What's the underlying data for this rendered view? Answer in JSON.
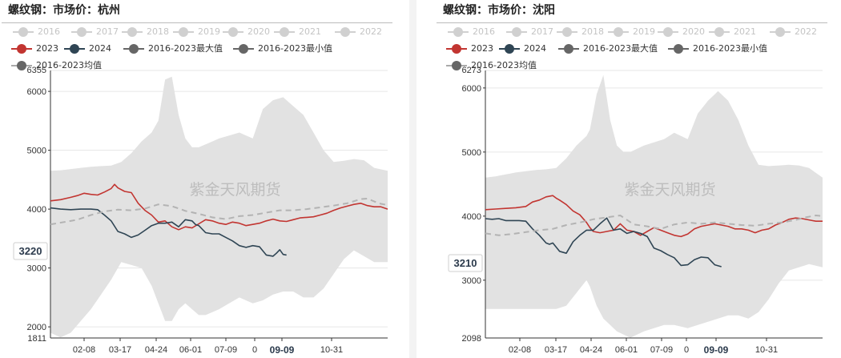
{
  "chart_data": [
    {
      "type": "line",
      "title": "螺纹钢：市场价：杭州",
      "watermark": "紫金天风期货",
      "x_ticks": [
        "02-08",
        "03-17",
        "04-24",
        "06-01",
        "07-09",
        "0",
        "09-09",
        "10-31"
      ],
      "highlight_tick": "09-09",
      "y_ticks": [
        2000,
        3000,
        4000,
        5000,
        6000
      ],
      "y_max_label": "6355",
      "y_min_label": "1811",
      "ylim": [
        1811,
        6355
      ],
      "last_value_label": "3220",
      "legend": [
        {
          "name": "2016",
          "active": false
        },
        {
          "name": "2017",
          "active": false
        },
        {
          "name": "2018",
          "active": false
        },
        {
          "name": "2019",
          "active": false
        },
        {
          "name": "2020",
          "active": false
        },
        {
          "name": "2021",
          "active": false
        },
        {
          "name": "2022",
          "active": false
        },
        {
          "name": "2023",
          "active": true,
          "color": "#c23531"
        },
        {
          "name": "2024",
          "active": true,
          "color": "#2f4554"
        },
        {
          "name": "2016-2023最大值",
          "active": true,
          "color": "#666666"
        },
        {
          "name": "2016-2023最小值",
          "active": true,
          "color": "#666666"
        },
        {
          "name": "2016-2023均值",
          "active": true,
          "color": "#666666"
        }
      ],
      "band": {
        "name": "2016-2023 range",
        "x": [
          0,
          3,
          6,
          9,
          12,
          15,
          18,
          21,
          24,
          27,
          30,
          32,
          34,
          36,
          38,
          40,
          42,
          44,
          46,
          48,
          50,
          53,
          56,
          60,
          63,
          66,
          69,
          72,
          75,
          78,
          81,
          84,
          87,
          90,
          93,
          96,
          100
        ],
        "max": [
          4650,
          4660,
          4680,
          4700,
          4720,
          4730,
          4740,
          4800,
          4950,
          5150,
          5300,
          5500,
          6200,
          6250,
          5600,
          5200,
          5050,
          5050,
          5100,
          5150,
          5200,
          5250,
          5300,
          5200,
          5700,
          5850,
          5900,
          5750,
          5600,
          5300,
          5000,
          4800,
          4820,
          4850,
          4830,
          4700,
          4650
        ],
        "min": [
          1900,
          1820,
          1900,
          2100,
          2300,
          2550,
          2800,
          3100,
          3050,
          3000,
          2700,
          2400,
          2100,
          2100,
          2300,
          2400,
          2300,
          2200,
          2200,
          2250,
          2300,
          2400,
          2500,
          2400,
          2450,
          2550,
          2600,
          2600,
          2500,
          2500,
          2650,
          2900,
          3150,
          3300,
          3200,
          3100,
          3100
        ]
      },
      "series": [
        {
          "name": "2023",
          "color": "#c23531",
          "dash": false,
          "x": [
            0,
            3,
            6,
            8,
            10,
            12,
            14,
            16,
            18,
            19,
            20,
            22,
            24,
            26,
            28,
            30,
            32,
            34,
            36,
            38,
            40,
            42,
            44,
            46,
            48,
            50,
            52,
            54,
            56,
            58,
            60,
            62,
            64,
            66,
            68,
            70,
            72,
            74,
            76,
            78,
            80,
            82,
            84,
            86,
            88,
            90,
            92,
            94,
            96,
            98,
            100
          ],
          "values": [
            4140,
            4160,
            4200,
            4230,
            4270,
            4250,
            4240,
            4290,
            4350,
            4420,
            4360,
            4300,
            4280,
            4100,
            3980,
            3900,
            3780,
            3800,
            3700,
            3650,
            3700,
            3680,
            3750,
            3820,
            3800,
            3760,
            3740,
            3780,
            3760,
            3720,
            3740,
            3760,
            3800,
            3830,
            3800,
            3790,
            3820,
            3850,
            3860,
            3870,
            3900,
            3930,
            3980,
            4020,
            4050,
            4080,
            4100,
            4060,
            4040,
            4040,
            4000
          ]
        },
        {
          "name": "2024",
          "color": "#2f4554",
          "dash": false,
          "x": [
            0,
            3,
            6,
            9,
            12,
            14,
            16,
            18,
            20,
            21,
            22,
            24,
            26,
            28,
            30,
            32,
            34,
            36,
            38,
            40,
            42,
            43,
            44,
            46,
            48,
            50,
            52,
            54,
            56,
            58,
            60,
            62,
            64,
            66,
            67,
            68,
            69,
            70
          ],
          "values": [
            4020,
            4000,
            3990,
            4000,
            4000,
            3990,
            3900,
            3800,
            3620,
            3600,
            3580,
            3520,
            3560,
            3640,
            3720,
            3760,
            3760,
            3780,
            3700,
            3820,
            3800,
            3740,
            3720,
            3600,
            3580,
            3580,
            3520,
            3460,
            3380,
            3350,
            3380,
            3360,
            3220,
            3200,
            3250,
            3310,
            3230,
            3220
          ]
        },
        {
          "name": "2016-2023均值",
          "color": "#b3b3b3",
          "dash": true,
          "x": [
            0,
            4,
            8,
            12,
            16,
            20,
            24,
            28,
            32,
            36,
            40,
            44,
            48,
            52,
            56,
            60,
            64,
            68,
            72,
            76,
            80,
            84,
            88,
            92,
            94,
            96,
            98,
            100
          ],
          "values": [
            3740,
            3780,
            3820,
            3900,
            3960,
            3990,
            3980,
            4010,
            4080,
            4050,
            3970,
            3920,
            3860,
            3830,
            3880,
            3900,
            3940,
            3980,
            3980,
            4000,
            4030,
            4060,
            4100,
            4170,
            4180,
            4130,
            4090,
            4070
          ]
        }
      ]
    },
    {
      "type": "line",
      "title": "螺纹钢：市场价：沈阳",
      "watermark": "紫金天风期货",
      "x_ticks": [
        "02-08",
        "03-17",
        "04-24",
        "06-01",
        "07-09",
        "0",
        "09-09",
        "10-31"
      ],
      "highlight_tick": "09-09",
      "y_ticks": [
        3000,
        4000,
        5000,
        6000
      ],
      "y_max_label": "6273",
      "y_min_label": "2098",
      "ylim": [
        2098,
        6273
      ],
      "last_value_label": "3210",
      "legend": [
        {
          "name": "2016",
          "active": false
        },
        {
          "name": "2017",
          "active": false
        },
        {
          "name": "2018",
          "active": false
        },
        {
          "name": "2019",
          "active": false
        },
        {
          "name": "2020",
          "active": false
        },
        {
          "name": "2021",
          "active": false
        },
        {
          "name": "2022",
          "active": false
        },
        {
          "name": "2023",
          "active": true,
          "color": "#c23531"
        },
        {
          "name": "2024",
          "active": true,
          "color": "#2f4554"
        },
        {
          "name": "2016-2023最大值",
          "active": true,
          "color": "#666666"
        },
        {
          "name": "2016-2023最小值",
          "active": true,
          "color": "#666666"
        },
        {
          "name": "2016-2023均值",
          "active": true,
          "color": "#666666"
        }
      ],
      "band": {
        "name": "2016-2023 range",
        "x": [
          0,
          3,
          6,
          9,
          12,
          15,
          18,
          21,
          24,
          27,
          30,
          31,
          33,
          35,
          37,
          39,
          41,
          43,
          45,
          47,
          50,
          53,
          56,
          60,
          63,
          66,
          69,
          72,
          75,
          78,
          81,
          84,
          87,
          90,
          93,
          96,
          100
        ],
        "max": [
          4600,
          4620,
          4650,
          4680,
          4700,
          4720,
          4730,
          4750,
          4900,
          5100,
          5250,
          5350,
          5900,
          6200,
          5500,
          5100,
          5000,
          5000,
          5050,
          5100,
          5150,
          5200,
          5300,
          5200,
          5600,
          5800,
          5950,
          5800,
          5500,
          5100,
          4800,
          4780,
          4790,
          4800,
          4790,
          4750,
          4600
        ],
        "min": [
          2550,
          2550,
          2550,
          2550,
          2550,
          2550,
          2550,
          2550,
          2600,
          2800,
          3000,
          2900,
          2600,
          2400,
          2300,
          2200,
          2150,
          2100,
          2150,
          2200,
          2250,
          2300,
          2300,
          2250,
          2300,
          2350,
          2400,
          2450,
          2450,
          2400,
          2500,
          2700,
          2950,
          3150,
          3200,
          3250,
          3200
        ]
      },
      "series": [
        {
          "name": "2023",
          "color": "#c23531",
          "dash": false,
          "x": [
            0,
            3,
            6,
            9,
            12,
            14,
            16,
            18,
            20,
            21,
            22,
            24,
            26,
            28,
            30,
            31,
            32,
            34,
            36,
            38,
            40,
            42,
            44,
            46,
            48,
            50,
            52,
            54,
            56,
            58,
            60,
            62,
            64,
            66,
            68,
            70,
            72,
            74,
            76,
            78,
            80,
            82,
            84,
            86,
            88,
            90,
            92,
            94,
            96,
            98,
            100
          ],
          "values": [
            4100,
            4110,
            4120,
            4130,
            4150,
            4220,
            4250,
            4300,
            4320,
            4280,
            4250,
            4180,
            4080,
            4020,
            3900,
            3820,
            3760,
            3740,
            3760,
            3780,
            3880,
            3780,
            3760,
            3700,
            3760,
            3820,
            3780,
            3740,
            3700,
            3680,
            3720,
            3800,
            3840,
            3860,
            3880,
            3860,
            3840,
            3800,
            3800,
            3780,
            3740,
            3780,
            3800,
            3860,
            3900,
            3950,
            3970,
            3960,
            3940,
            3920,
            3920
          ]
        },
        {
          "name": "2024",
          "color": "#2f4554",
          "dash": false,
          "x": [
            0,
            2,
            4,
            6,
            8,
            10,
            12,
            14,
            16,
            18,
            19,
            20,
            22,
            24,
            26,
            28,
            30,
            32,
            34,
            36,
            38,
            40,
            42,
            44,
            46,
            48,
            50,
            52,
            54,
            56,
            58,
            60,
            62,
            64,
            66,
            68,
            70
          ],
          "values": [
            3960,
            3950,
            3960,
            3930,
            3930,
            3930,
            3920,
            3800,
            3700,
            3580,
            3560,
            3580,
            3450,
            3420,
            3600,
            3700,
            3780,
            3780,
            3880,
            3970,
            3780,
            3800,
            3730,
            3760,
            3730,
            3680,
            3500,
            3460,
            3400,
            3350,
            3230,
            3240,
            3320,
            3360,
            3350,
            3240,
            3210
          ]
        },
        {
          "name": "2016-2023均值",
          "color": "#b3b3b3",
          "dash": true,
          "x": [
            0,
            4,
            8,
            12,
            16,
            20,
            24,
            28,
            32,
            36,
            40,
            44,
            48,
            52,
            56,
            60,
            64,
            68,
            72,
            76,
            80,
            84,
            88,
            92,
            95,
            98,
            100
          ],
          "values": [
            3730,
            3700,
            3720,
            3750,
            3780,
            3800,
            3860,
            3900,
            3950,
            3980,
            4010,
            3870,
            3840,
            3800,
            3870,
            3900,
            3880,
            3900,
            3880,
            3860,
            3850,
            3880,
            3900,
            3940,
            3980,
            4010,
            4000
          ]
        }
      ]
    }
  ]
}
